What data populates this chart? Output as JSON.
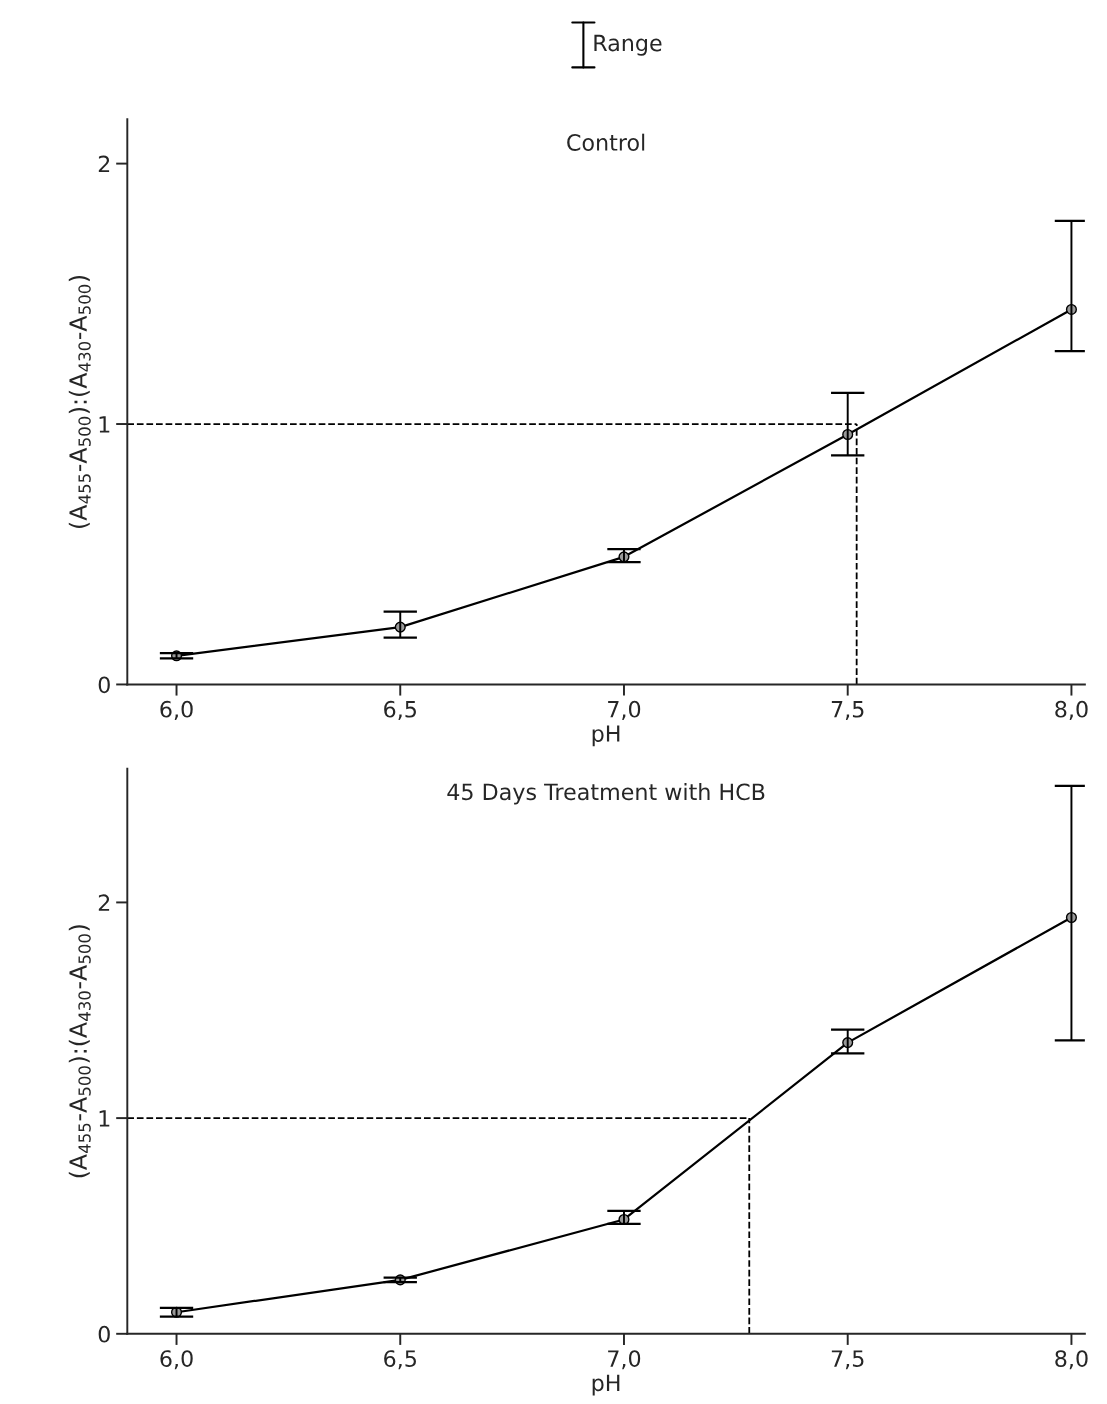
{
  "chart_data": [
    {
      "type": "line",
      "title": "Control",
      "xlabel": "pH",
      "ylabel": "(A$_{455}$-A$_{500}$):(A$_{430}$-A$_{500}$)",
      "annotations": [
        "Range"
      ],
      "x": [
        6.0,
        6.5,
        7.0,
        7.5,
        8.0
      ],
      "series": [
        {
          "color": "#000000",
          "values": [
            0.11,
            0.22,
            0.49,
            0.96,
            1.44
          ],
          "errors": [
            [
              0.1,
              0.12
            ],
            [
              0.18,
              0.28
            ],
            [
              0.47,
              0.52
            ],
            [
              0.88,
              1.12
            ],
            [
              1.28,
              1.78
            ]
          ]
        }
      ],
      "marker": "circle",
      "line_style": "solid",
      "grid": false,
      "legend": false,
      "xlim": [
        5.89,
        8.03
      ],
      "ylim": [
        0,
        2.17
      ],
      "xticks": [
        {
          "value": 6.0,
          "label": "6,0"
        },
        {
          "value": 6.5,
          "label": "6,5"
        },
        {
          "value": 7.0,
          "label": "7,0"
        },
        {
          "value": 7.5,
          "label": "7,5"
        },
        {
          "value": 8.0,
          "label": "8,0"
        }
      ],
      "yticks": [
        0,
        1,
        2
      ],
      "ref_lines": [
        {
          "axis": "y",
          "value": 1,
          "line_style": "dashed",
          "color": "#000000"
        },
        {
          "axis": "x",
          "value": 7.52,
          "line_style": "dashed",
          "color": "#000000"
        }
      ]
    },
    {
      "type": "line",
      "title": "45 Days Treatment with HCB",
      "xlabel": "pH",
      "ylabel": "(A$_{455}$-A$_{500}$):(A$_{430}$-A$_{500}$)",
      "x": [
        6.0,
        6.5,
        7.0,
        7.5,
        8.0
      ],
      "series": [
        {
          "color": "#000000",
          "values": [
            0.1,
            0.25,
            0.53,
            1.35,
            1.93
          ],
          "errors": [
            [
              0.08,
              0.12
            ],
            [
              0.24,
              0.26
            ],
            [
              0.51,
              0.57
            ],
            [
              1.3,
              1.41
            ],
            [
              1.36,
              2.54
            ]
          ]
        }
      ],
      "marker": "circle",
      "line_style": "solid",
      "grid": false,
      "legend": false,
      "xlim": [
        5.89,
        8.03
      ],
      "ylim": [
        0,
        2.62
      ],
      "xticks": [
        {
          "value": 6.0,
          "label": "6,0"
        },
        {
          "value": 6.5,
          "label": "6,5"
        },
        {
          "value": 7.0,
          "label": "7,0"
        },
        {
          "value": 7.5,
          "label": "7,5"
        },
        {
          "value": 8.0,
          "label": "8,0"
        }
      ],
      "yticks": [
        0,
        1,
        2
      ],
      "ref_lines": [
        {
          "axis": "y",
          "value": 1,
          "line_style": "dashed",
          "color": "#000000"
        },
        {
          "axis": "x",
          "value": 7.28,
          "line_style": "dashed",
          "color": "#000000"
        }
      ]
    }
  ]
}
